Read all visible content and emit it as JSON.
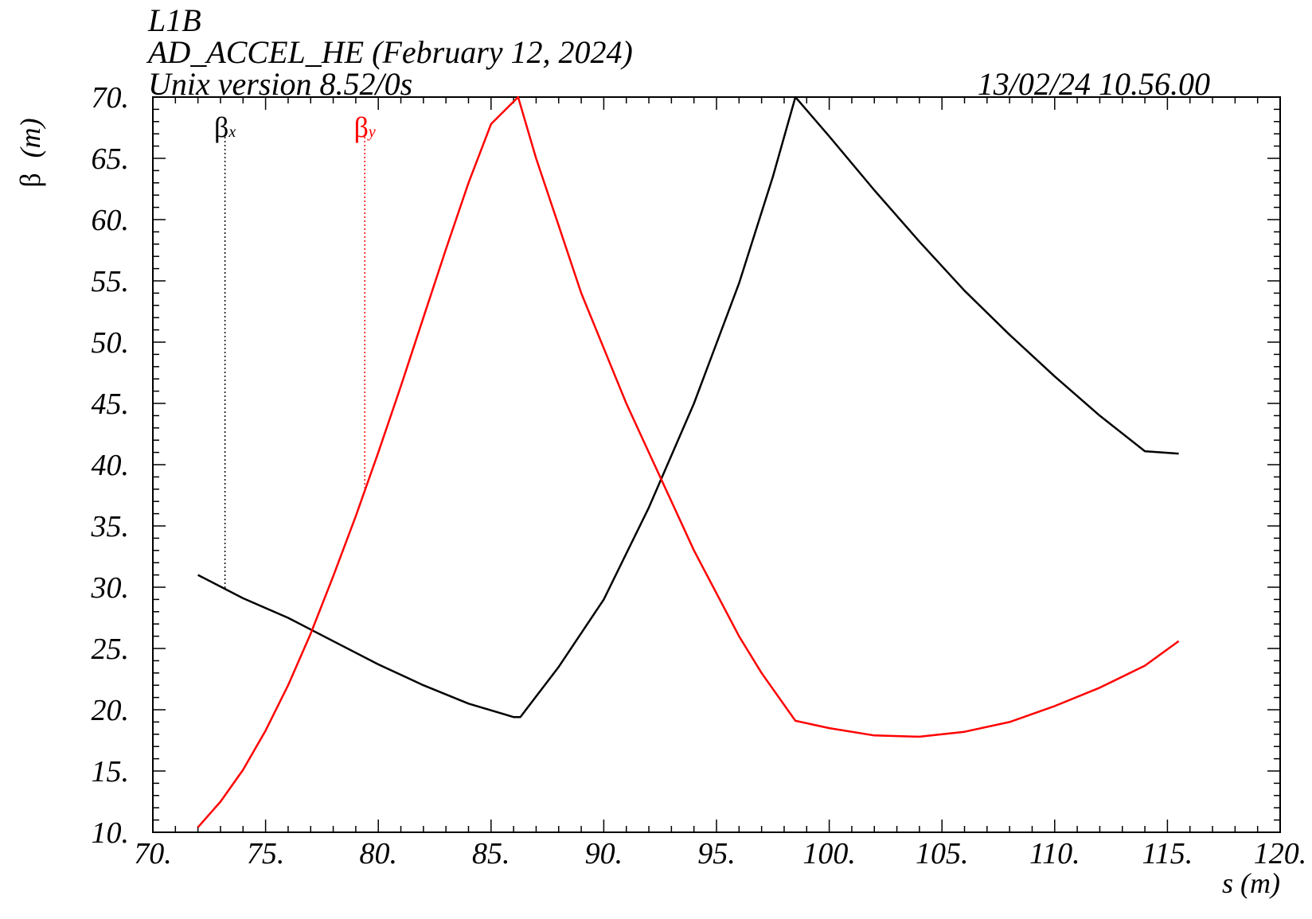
{
  "header": {
    "line1": "L1B",
    "line2": "AD_ACCEL_HE (February 12, 2024)",
    "line3": "Unix version 8.52/0s",
    "timestamp": "13/02/24  10.56.00"
  },
  "chart_data": {
    "type": "line",
    "title": "",
    "xlabel": "s (m)",
    "ylabel_symbol": "β",
    "ylabel_unit": "(m)",
    "xlim": [
      70,
      120
    ],
    "ylim": [
      10,
      70
    ],
    "x_tick_labels": [
      "70.",
      "75.",
      "80.",
      "85.",
      "90.",
      "95.",
      "100.",
      "105.",
      "110.",
      "115.",
      "120."
    ],
    "y_tick_labels": [
      "10.",
      "15.",
      "20.",
      "25.",
      "30.",
      "35.",
      "40.",
      "45.",
      "50.",
      "55.",
      "60.",
      "65.",
      "70."
    ],
    "grid": false,
    "series": [
      {
        "name": "β",
        "subscript": "x",
        "color": "#000000",
        "marker_s": 73.2,
        "points": [
          [
            72.0,
            31.0
          ],
          [
            74.0,
            29.1
          ],
          [
            76.0,
            27.5
          ],
          [
            78.0,
            25.6
          ],
          [
            80.0,
            23.7
          ],
          [
            82.0,
            22.0
          ],
          [
            84.0,
            20.5
          ],
          [
            86.0,
            19.4
          ],
          [
            86.3,
            19.4
          ],
          [
            88.0,
            23.5
          ],
          [
            90.0,
            29.0
          ],
          [
            92.0,
            36.5
          ],
          [
            94.0,
            45.0
          ],
          [
            96.0,
            54.8
          ],
          [
            97.5,
            63.5
          ],
          [
            98.5,
            70.0
          ],
          [
            100.0,
            66.8
          ],
          [
            102.0,
            62.4
          ],
          [
            104.0,
            58.2
          ],
          [
            106.0,
            54.2
          ],
          [
            108.0,
            50.6
          ],
          [
            110.0,
            47.2
          ],
          [
            112.0,
            44.0
          ],
          [
            114.0,
            41.1
          ],
          [
            115.5,
            40.9
          ]
        ]
      },
      {
        "name": "β",
        "subscript": "y",
        "color": "#ff0000",
        "marker_s": 79.4,
        "points": [
          [
            72.0,
            10.4
          ],
          [
            73.0,
            12.5
          ],
          [
            74.0,
            15.1
          ],
          [
            75.0,
            18.3
          ],
          [
            76.0,
            22.0
          ],
          [
            77.0,
            26.2
          ],
          [
            78.0,
            30.9
          ],
          [
            79.0,
            35.8
          ],
          [
            80.0,
            41.0
          ],
          [
            81.0,
            46.4
          ],
          [
            82.0,
            52.0
          ],
          [
            83.0,
            57.6
          ],
          [
            84.0,
            63.0
          ],
          [
            85.0,
            67.8
          ],
          [
            86.2,
            70.0
          ],
          [
            87.0,
            65.0
          ],
          [
            88.0,
            59.5
          ],
          [
            89.0,
            54.0
          ],
          [
            90.0,
            49.5
          ],
          [
            91.0,
            45.0
          ],
          [
            92.0,
            41.0
          ],
          [
            93.0,
            37.0
          ],
          [
            94.0,
            33.0
          ],
          [
            95.0,
            29.5
          ],
          [
            96.0,
            26.0
          ],
          [
            97.0,
            23.0
          ],
          [
            98.5,
            19.1
          ],
          [
            100.0,
            18.5
          ],
          [
            102.0,
            17.9
          ],
          [
            104.0,
            17.8
          ],
          [
            106.0,
            18.2
          ],
          [
            108.0,
            19.0
          ],
          [
            110.0,
            20.3
          ],
          [
            112.0,
            21.8
          ],
          [
            114.0,
            23.6
          ],
          [
            115.5,
            25.6
          ]
        ]
      }
    ]
  }
}
